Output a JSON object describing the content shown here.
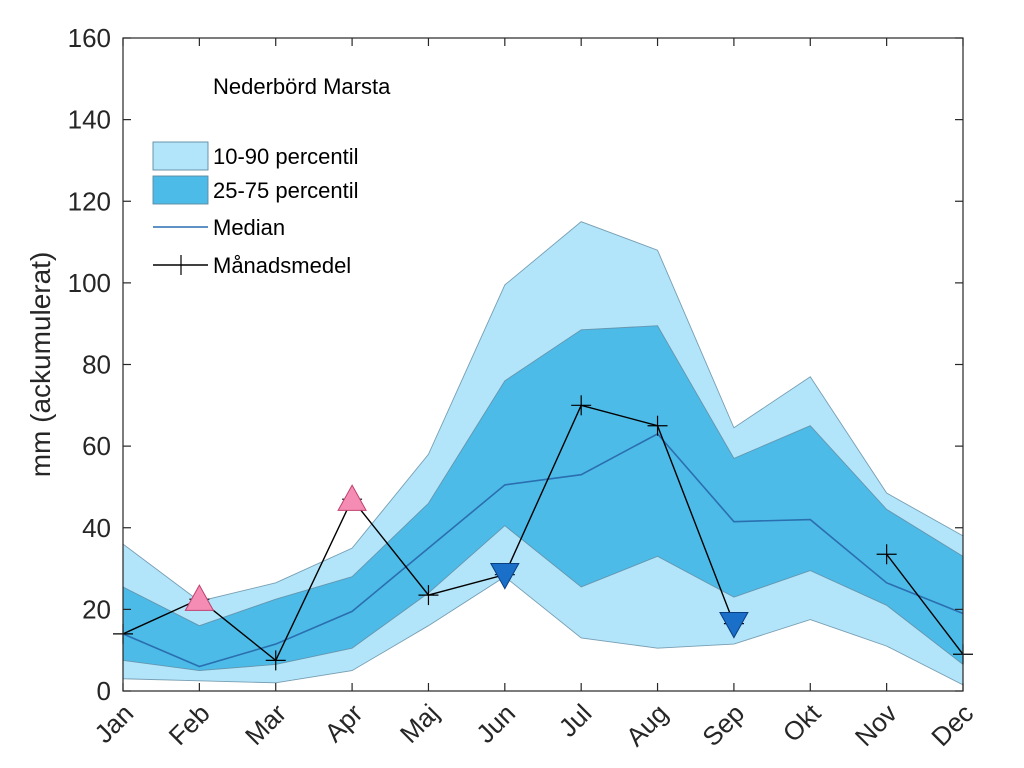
{
  "chart_data": {
    "type": "area",
    "title": "Nederbörd Marsta",
    "xlabel": "",
    "ylabel": "mm (ackumulerat)",
    "ylim": [
      0,
      160
    ],
    "yticks": [
      0,
      20,
      40,
      60,
      80,
      100,
      120,
      140,
      160
    ],
    "categories": [
      "Jan",
      "Feb",
      "Mar",
      "Apr",
      "Maj",
      "Jun",
      "Jul",
      "Aug",
      "Sep",
      "Okt",
      "Nov",
      "Dec"
    ],
    "bands": [
      {
        "name": "10-90 percentil",
        "color": "#b3e5fa",
        "lower": [
          3,
          2.5,
          2,
          5,
          16,
          28,
          13,
          10.5,
          11.5,
          17.5,
          11,
          1.5
        ],
        "upper": [
          36,
          22,
          26.5,
          35,
          58,
          99.5,
          115,
          108,
          64.5,
          77,
          48.5,
          38
        ]
      },
      {
        "name": "25-75 percentil",
        "color": "#4dbbe8",
        "lower": [
          7.5,
          5,
          6.5,
          10.5,
          24,
          40.5,
          25.5,
          33,
          23,
          29.5,
          21,
          6.5
        ],
        "upper": [
          25.5,
          16,
          22.5,
          28,
          46,
          76,
          88.5,
          89.5,
          57,
          65,
          44.5,
          33
        ]
      }
    ],
    "series": [
      {
        "name": "Median",
        "color": "#2a6fb0",
        "values": [
          14,
          6,
          11.5,
          19.5,
          35,
          50.5,
          53,
          63,
          41.5,
          42,
          26.5,
          19
        ]
      },
      {
        "name": "Månadsmedel",
        "color": "#000000",
        "values": [
          14,
          22.5,
          7.5,
          47,
          23.5,
          28.5,
          70,
          65,
          16.5,
          null,
          33.5,
          9
        ]
      }
    ],
    "markers": [
      {
        "category": "Feb",
        "value": 22.5,
        "shape": "triangle-up",
        "color": "#f48cb4"
      },
      {
        "category": "Apr",
        "value": 47,
        "shape": "triangle-up",
        "color": "#f48cb4"
      },
      {
        "category": "Jun",
        "value": 28.5,
        "shape": "triangle-down",
        "color": "#1a6fc8"
      },
      {
        "category": "Sep",
        "value": 16.5,
        "shape": "triangle-down",
        "color": "#1a6fc8"
      }
    ],
    "legend": [
      {
        "label": "10-90 percentil",
        "kind": "patch",
        "color": "#b3e5fa"
      },
      {
        "label": "25-75 percentil",
        "kind": "patch",
        "color": "#4dbbe8"
      },
      {
        "label": "Median",
        "kind": "line",
        "color": "#2a6fb0"
      },
      {
        "label": "Månadsmedel",
        "kind": "line-plus",
        "color": "#000000"
      }
    ],
    "legend_position": "top-left",
    "grid": false
  }
}
